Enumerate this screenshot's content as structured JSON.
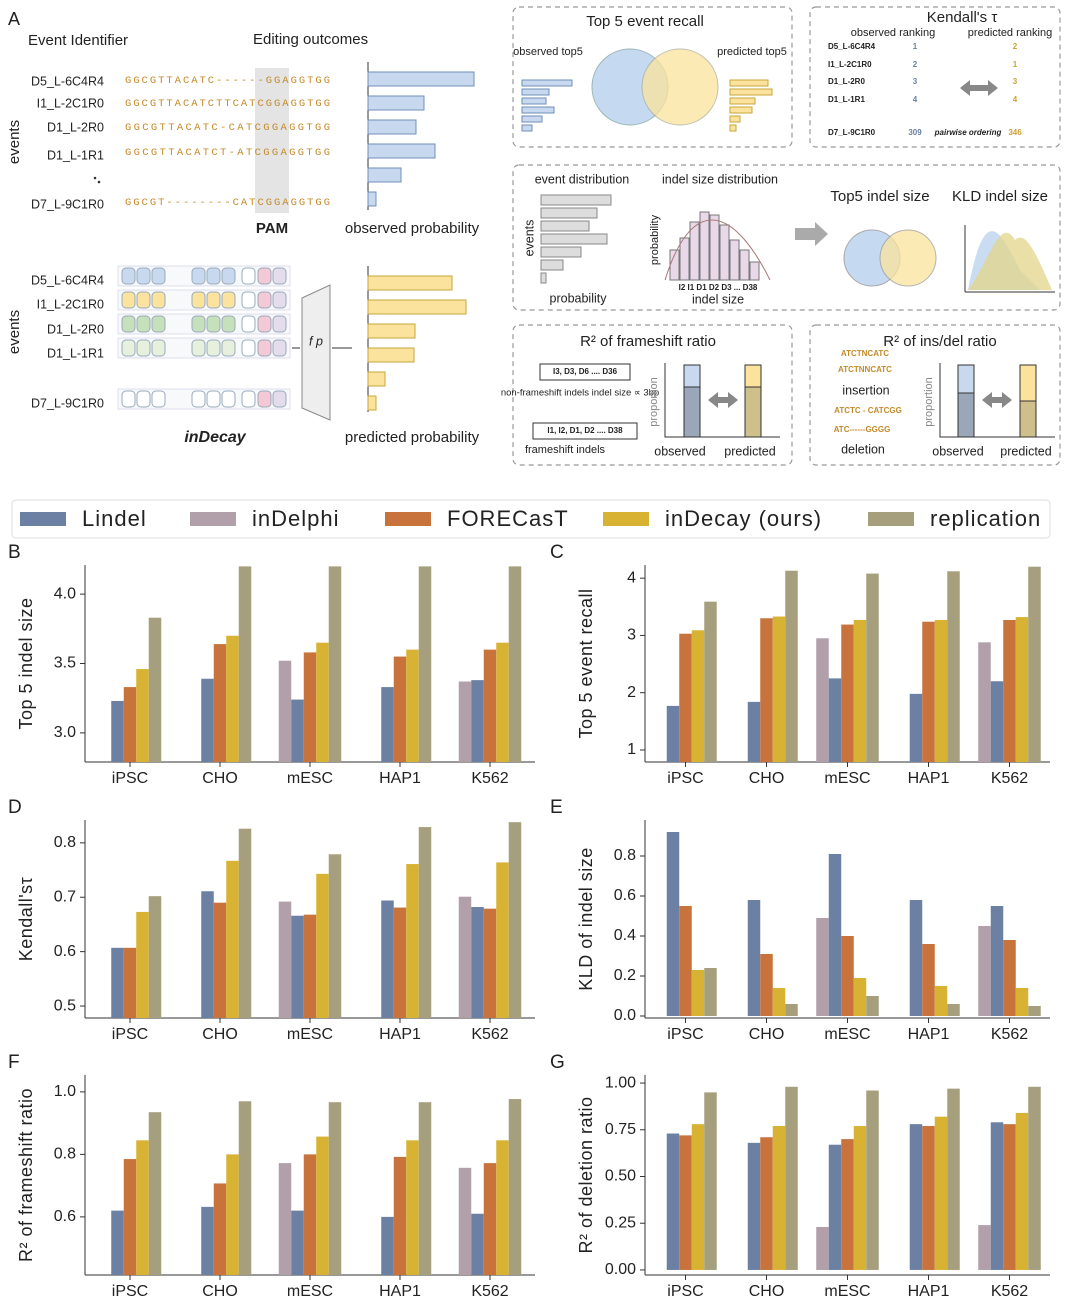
{
  "panel_a": {
    "label": "A",
    "event_identifier": "Event Identifier",
    "editing_outcomes": "Editing outcomes",
    "events_axis": "events",
    "events": [
      "D5_L-6C4R4",
      "I1_L-2C1R0",
      "D1_L-2R0",
      "D1_L-1R1",
      "D7_L-9C1R0"
    ],
    "sequences": [
      "GGCGTTACATC------GGAGGTGG",
      "GGCGTTACATCTTCATCGGAGGTGG",
      "GGCGTTACATC-CATCGGAGGTGG",
      "GGCGTTACATCT-ATCGGAGGTGG",
      "GGCGT--------CATCGGAGGTGG"
    ],
    "pam": "PAM",
    "observed_probability": "observed probability",
    "model_name": "inDecay",
    "model_fn": "f p",
    "predicted_probability": "predicted probability",
    "recall_box": {
      "title": "Top 5 event recall",
      "observed": "observed top5",
      "predicted": "predicted top5"
    },
    "kendall_box": {
      "title": "Kendall's τ",
      "observed": "observed ranking",
      "predicted": "predicted ranking",
      "rows": [
        [
          "D5_L-6C4R4",
          "1",
          "2"
        ],
        [
          "I1_L-2C1R0",
          "2",
          "1"
        ],
        [
          "D1_L-2R0",
          "3",
          "3"
        ],
        [
          "D1_L-1R1",
          "4",
          "4"
        ],
        [
          "D7_L-9C1R0",
          "309",
          "346"
        ]
      ],
      "pairwise": "pairwise ordering"
    },
    "dist_box": {
      "event_distribution": "event distribution",
      "indel_distribution": "indel size distribution",
      "events": "events",
      "probability_x": "probability",
      "probability_y": "probability",
      "indel_ticks": "I2 I1 D1 D2 D3 ... D38",
      "indel_size": "indel size",
      "top5": "Top5 indel size",
      "kld": "KLD indel size"
    },
    "frameshift_box": {
      "title": "R² of frameshift ratio",
      "nonfs_list": "I3, D3, D6 .... D36",
      "nonfs": "non-frameshift indels indel size ∝ 3bp",
      "fs_list": "I1, I2, D1, D2 .... D38",
      "fs": "frameshift indels",
      "proportion": "proportion",
      "observed": "observed",
      "predicted": "predicted"
    },
    "insdel_box": {
      "title": "R² of ins/del ratio",
      "ins1": "ATCTNCATC",
      "ins2": "ATCTNNCATC",
      "insertion": "insertion",
      "del1": "ATCTC - CATCGG",
      "del2": "ATC------GGGG",
      "deletion": "deletion",
      "proportion": "proportion",
      "observed": "observed",
      "predicted": "predicted"
    }
  },
  "legend": [
    {
      "name": "Lindel",
      "color": "#6b80a3"
    },
    {
      "name": "inDelphi",
      "color": "#b19faa"
    },
    {
      "name": "FORECasT",
      "color": "#c8733b"
    },
    {
      "name": "inDecay (ours)",
      "color": "#d8b232"
    },
    {
      "name": "replication",
      "color": "#a69f7e"
    }
  ],
  "chart_data": [
    {
      "type": "bar",
      "panel": "B",
      "y_label": "Top 5 indel size",
      "categories": [
        "iPSC",
        "CHO",
        "mESC",
        "HAP1",
        "K562"
      ],
      "series": [
        {
          "values": [
            3.23,
            3.39,
            3.24,
            3.33,
            3.38
          ]
        },
        {
          "values": [
            null,
            null,
            3.52,
            null,
            3.37
          ]
        },
        {
          "values": [
            3.33,
            3.64,
            3.58,
            3.55,
            3.6
          ]
        },
        {
          "values": [
            3.46,
            3.7,
            3.65,
            3.6,
            3.65
          ]
        },
        {
          "values": [
            3.83,
            4.2,
            4.2,
            4.2,
            4.2
          ]
        }
      ],
      "ylim": [
        2.79,
        4.21
      ],
      "yticks": [
        {
          "value": 3,
          "label": "3.0"
        },
        3.5,
        {
          "value": 4,
          "label": "4.0"
        }
      ]
    },
    {
      "type": "bar",
      "panel": "C",
      "y_label": "Top 5 event recall",
      "categories": [
        "iPSC",
        "CHO",
        "mESC",
        "HAP1",
        "K562"
      ],
      "series": [
        {
          "values": [
            1.77,
            1.84,
            2.25,
            1.98,
            2.2
          ]
        },
        {
          "values": [
            null,
            null,
            2.95,
            null,
            2.88
          ]
        },
        {
          "values": [
            3.03,
            3.3,
            3.19,
            3.24,
            3.27
          ]
        },
        {
          "values": [
            3.09,
            3.33,
            3.27,
            3.27,
            3.32
          ]
        },
        {
          "values": [
            3.59,
            4.13,
            4.08,
            4.12,
            4.2
          ]
        }
      ],
      "ylim": [
        0.79,
        4.23
      ],
      "yticks": [
        1,
        2,
        3,
        4
      ]
    },
    {
      "type": "bar",
      "panel": "D",
      "y_label": "Kendall'sτ",
      "categories": [
        "iPSC",
        "CHO",
        "mESC",
        "HAP1",
        "K562"
      ],
      "series": [
        {
          "values": [
            0.607,
            0.711,
            0.666,
            0.694,
            0.682
          ]
        },
        {
          "values": [
            null,
            null,
            0.692,
            null,
            0.701
          ]
        },
        {
          "values": [
            0.607,
            0.69,
            0.668,
            0.681,
            0.679
          ]
        },
        {
          "values": [
            0.673,
            0.767,
            0.743,
            0.761,
            0.764
          ]
        },
        {
          "values": [
            0.702,
            0.826,
            0.779,
            0.829,
            0.838
          ]
        }
      ],
      "ylim": [
        0.478,
        0.842
      ],
      "yticks": [
        0.5,
        0.6,
        0.7,
        0.8
      ]
    },
    {
      "type": "bar",
      "panel": "E",
      "y_label": "KLD of indel size",
      "categories": [
        "iPSC",
        "CHO",
        "mESC",
        "HAP1",
        "K562"
      ],
      "series": [
        {
          "values": [
            0.92,
            0.58,
            0.81,
            0.58,
            0.55
          ]
        },
        {
          "values": [
            null,
            null,
            0.49,
            null,
            0.45
          ]
        },
        {
          "values": [
            0.55,
            0.31,
            0.4,
            0.36,
            0.38
          ]
        },
        {
          "values": [
            0.23,
            0.14,
            0.19,
            0.15,
            0.14
          ]
        },
        {
          "values": [
            0.24,
            0.06,
            0.1,
            0.06,
            0.05
          ]
        }
      ],
      "ylim": [
        -0.01,
        0.98
      ],
      "yticks": [
        {
          "value": 0,
          "label": "0.0"
        },
        0.2,
        0.4,
        0.6,
        0.8
      ]
    },
    {
      "type": "bar",
      "panel": "F",
      "y_label": "R² of frameshift ratio",
      "categories": [
        "iPSC",
        "CHO",
        "mESC",
        "HAP1",
        "K562"
      ],
      "series": [
        {
          "values": [
            0.62,
            0.632,
            0.62,
            0.6,
            0.61
          ]
        },
        {
          "values": [
            null,
            null,
            0.772,
            null,
            0.757
          ]
        },
        {
          "values": [
            0.785,
            0.707,
            0.8,
            0.792,
            0.772
          ]
        },
        {
          "values": [
            0.845,
            0.8,
            0.857,
            0.845,
            0.845
          ]
        },
        {
          "values": [
            0.935,
            0.97,
            0.967,
            0.967,
            0.977
          ]
        }
      ],
      "ylim": [
        0.414,
        1.054
      ],
      "yticks": [
        0.6,
        0.8,
        {
          "value": 1,
          "label": "1.0"
        }
      ]
    },
    {
      "type": "bar",
      "panel": "G",
      "y_label": "R² of deletion ratio",
      "categories": [
        "iPSC",
        "CHO",
        "mESC",
        "HAP1",
        "K562"
      ],
      "series": [
        {
          "values": [
            0.73,
            0.68,
            0.67,
            0.78,
            0.79
          ]
        },
        {
          "values": [
            null,
            null,
            0.23,
            null,
            0.24
          ]
        },
        {
          "values": [
            0.72,
            0.71,
            0.7,
            0.77,
            0.78
          ]
        },
        {
          "values": [
            0.78,
            0.77,
            0.77,
            0.82,
            0.84
          ]
        },
        {
          "values": [
            0.95,
            0.98,
            0.96,
            0.97,
            0.98
          ]
        }
      ],
      "ylim": [
        -0.027,
        1.043
      ],
      "yticks": [
        {
          "value": 0,
          "label": "0.00"
        },
        0.25,
        {
          "value": 0.5,
          "label": "0.50"
        },
        0.75,
        {
          "value": 1,
          "label": "1.00"
        }
      ]
    }
  ]
}
